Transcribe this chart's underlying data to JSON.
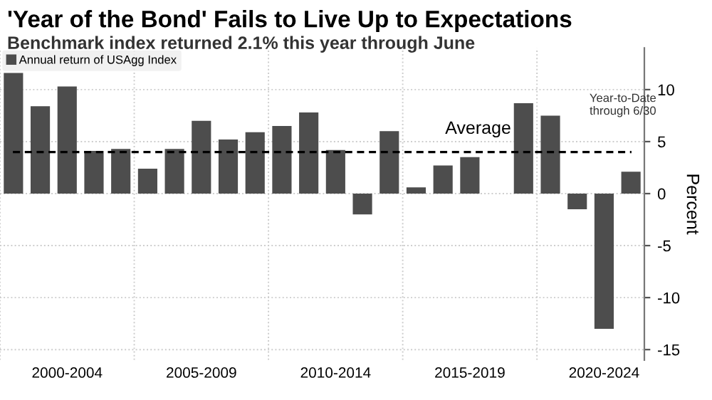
{
  "chart_data": {
    "type": "bar",
    "title": "'Year of the Bond' Fails to Live Up to Expectations",
    "subtitle": "Benchmark index returned 2.1% this year through June",
    "ylabel": "Percent",
    "categories": [
      null,
      null,
      "2000-2004",
      null,
      null,
      null,
      null,
      "2005-2009",
      null,
      null,
      null,
      null,
      "2010-2014",
      null,
      null,
      null,
      null,
      "2015-2019",
      null,
      null,
      null,
      null,
      "2020-2024",
      null
    ],
    "series": [
      {
        "name": "Annual return of USAgg Index",
        "color": "#4d4d4d",
        "values": [
          11.6,
          8.4,
          10.3,
          4.1,
          4.3,
          2.4,
          4.3,
          7.0,
          5.2,
          5.9,
          6.5,
          7.8,
          4.2,
          -2.0,
          6.0,
          0.6,
          2.7,
          3.5,
          0.0,
          8.7,
          7.5,
          -1.5,
          -13.0,
          2.1
        ]
      }
    ],
    "ylim": [
      -16,
      14
    ],
    "yticks": [
      -15,
      -10,
      -5,
      0,
      5,
      10
    ],
    "grid": true,
    "legend": "top left",
    "ref_lines": [
      {
        "axis": "y",
        "value": 4,
        "label": "Average",
        "color": "#000000",
        "line_style": "dashed"
      }
    ],
    "annotations": [
      "Year-to-Date\nthrough 6/30"
    ]
  }
}
